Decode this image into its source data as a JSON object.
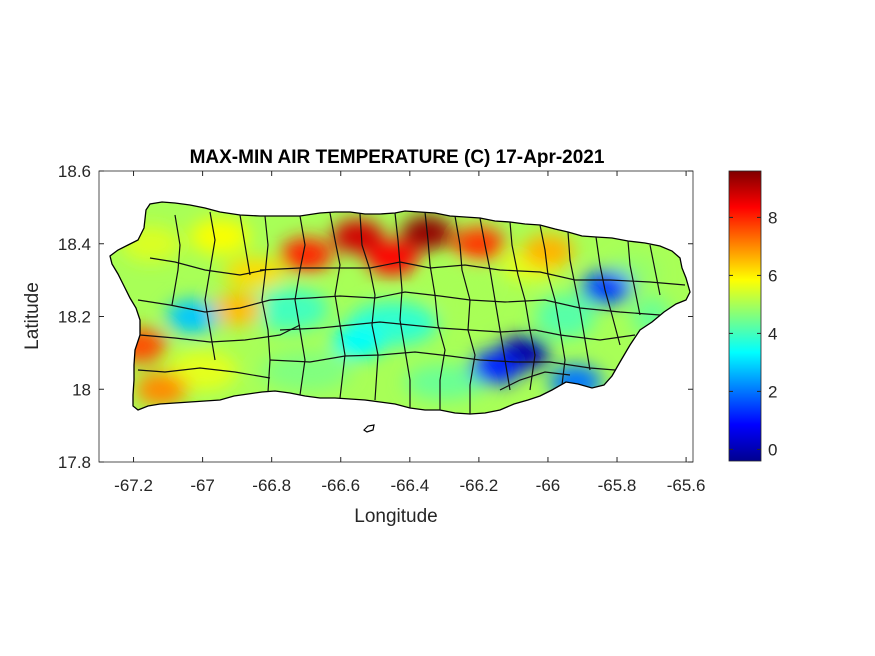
{
  "chart_data": {
    "type": "heatmap",
    "title": "MAX-MIN AIR TEMPERATURE (C) 17-Apr-2021",
    "xlabel": "Longitude",
    "ylabel": "Latitude",
    "xlim": [
      -67.3,
      -65.58
    ],
    "ylim": [
      17.8,
      18.6
    ],
    "xticks": [
      -67.2,
      -67,
      -66.8,
      -66.6,
      -66.4,
      -66.2,
      -66,
      -65.8,
      -65.6
    ],
    "xtick_labels": [
      "-67.2",
      "-67",
      "-66.8",
      "-66.6",
      "-66.4",
      "-66.2",
      "-66",
      "-65.8",
      "-65.6"
    ],
    "yticks": [
      17.8,
      18,
      18.2,
      18.4,
      18.6
    ],
    "ytick_labels": [
      "17.8",
      "18",
      "18.2",
      "18.4",
      "18.6"
    ],
    "colorbar": {
      "colormap": "jet",
      "range": [
        -0.4,
        9.6
      ],
      "ticks": [
        0,
        2,
        4,
        6,
        8
      ],
      "tick_labels": [
        "0",
        "2",
        "4",
        "6",
        "8"
      ]
    },
    "region": "Puerto Rico (municipality boundaries)",
    "hotspots": [
      {
        "lon": -66.35,
        "lat": 18.43,
        "value": 9.3
      },
      {
        "lon": -66.55,
        "lat": 18.42,
        "value": 8.8
      },
      {
        "lon": -66.7,
        "lat": 18.37,
        "value": 8.0
      },
      {
        "lon": -66.45,
        "lat": 18.36,
        "value": 8.3
      },
      {
        "lon": -66.2,
        "lat": 18.4,
        "value": 7.8
      },
      {
        "lon": -66.0,
        "lat": 18.38,
        "value": 6.6
      },
      {
        "lon": -67.18,
        "lat": 18.12,
        "value": 7.6
      },
      {
        "lon": -67.12,
        "lat": 18.0,
        "value": 7.0
      },
      {
        "lon": -66.9,
        "lat": 18.22,
        "value": 6.5
      }
    ],
    "coldspots": [
      {
        "lon": -66.07,
        "lat": 18.1,
        "value": 0.2
      },
      {
        "lon": -66.15,
        "lat": 18.06,
        "value": 1.2
      },
      {
        "lon": -65.83,
        "lat": 18.28,
        "value": 1.8
      },
      {
        "lon": -65.92,
        "lat": 18.02,
        "value": 2.0
      },
      {
        "lon": -67.03,
        "lat": 18.2,
        "value": 2.8
      },
      {
        "lon": -66.55,
        "lat": 18.13,
        "value": 3.4
      }
    ]
  }
}
